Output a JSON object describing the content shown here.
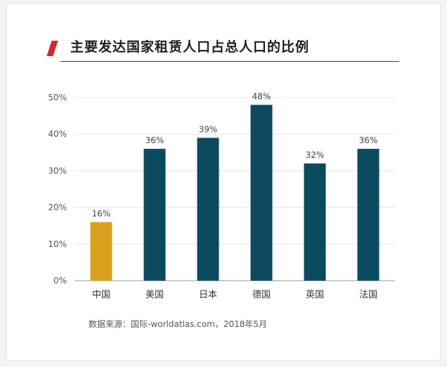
{
  "title": "主要发达国家租赁人口占总人口的比例",
  "source": "数据来源：国际-worldatlas.com，2018年5月",
  "colors": {
    "highlight": "#d9a21e",
    "bar": "#0c4a5f",
    "accent": "#d0282c"
  },
  "chart_data": {
    "type": "bar",
    "categories": [
      "中国",
      "美国",
      "日本",
      "德国",
      "英国",
      "法国"
    ],
    "values": [
      16,
      36,
      39,
      48,
      32,
      36
    ],
    "value_labels": [
      "16%",
      "36%",
      "39%",
      "48%",
      "32%",
      "36%"
    ],
    "yticks": [
      "0%",
      "10%",
      "20%",
      "30%",
      "40%",
      "50%"
    ],
    "ylim": [
      0,
      50
    ],
    "grid": true,
    "highlight_index": 0
  }
}
